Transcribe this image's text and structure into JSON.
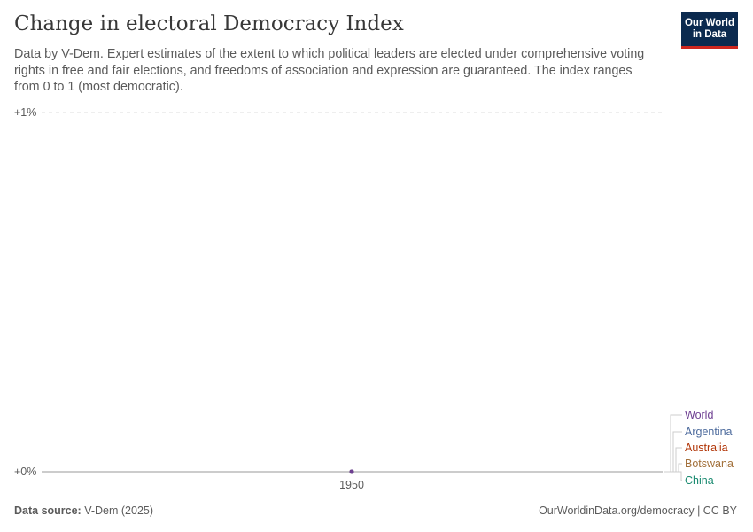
{
  "header": {
    "title": "Change in electoral Democracy Index",
    "subtitle": "Data by V-Dem. Expert estimates of the extent to which political leaders are elected under comprehensive voting rights in free and fair elections, and freedoms of association and expression are guaranteed. The index ranges from 0 to 1 (most democratic).",
    "logo_line1": "Our World",
    "logo_line2": "in Data"
  },
  "footer": {
    "source_label": "Data source:",
    "source_value": "V-Dem (2025)",
    "attribution": "OurWorldinData.org/democracy | CC BY"
  },
  "chart_data": {
    "type": "line",
    "x": [
      1950
    ],
    "xlabel": "",
    "ylabel": "",
    "ylim": [
      0,
      1
    ],
    "y_unit": "%",
    "y_ticks": [
      "+0%",
      "+1%"
    ],
    "x_ticks": [
      "1950"
    ],
    "grid": true,
    "legend_placement": "right",
    "series": [
      {
        "name": "World",
        "values": [
          0
        ],
        "color": "#6d3e91"
      },
      {
        "name": "Argentina",
        "values": [
          0
        ],
        "color": "#4c6a9c"
      },
      {
        "name": "Australia",
        "values": [
          0
        ],
        "color": "#b13507"
      },
      {
        "name": "Botswana",
        "values": [
          0
        ],
        "color": "#a2703a"
      },
      {
        "name": "China",
        "values": [
          0
        ],
        "color": "#18896f"
      }
    ]
  }
}
